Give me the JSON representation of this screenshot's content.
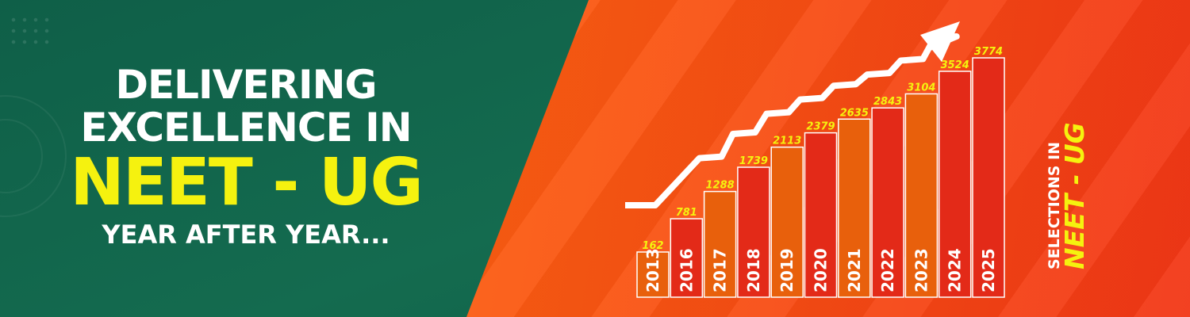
{
  "headline": {
    "line1": "DELIVERING",
    "line2": "EXCELLENCE IN",
    "line3": "NEET - UG",
    "line4": "YEAR AFTER YEAR..."
  },
  "side_label": {
    "small": "SELECTIONS IN",
    "big": "NEET - UG"
  },
  "colors": {
    "green": "#146b4f",
    "orange": "#f8730e",
    "red": "#f23716",
    "yellow": "#f5f20f",
    "bar_orange": "#e8600c",
    "bar_red": "#e32a18"
  },
  "chart_data": {
    "type": "bar",
    "title": "",
    "xlabel": "",
    "ylabel": "",
    "categories": [
      "2013",
      "2016",
      "2017",
      "2018",
      "2019",
      "2020",
      "2021",
      "2022",
      "2023",
      "2024",
      "2025"
    ],
    "values": [
      162,
      781,
      1288,
      1739,
      2113,
      2379,
      2635,
      2843,
      3104,
      3524,
      3774
    ],
    "bar_colors": [
      "#e8600c",
      "#e32a18",
      "#e8600c",
      "#e32a18",
      "#e8600c",
      "#e32a18",
      "#e8600c",
      "#e32a18",
      "#e8600c",
      "#e32a18",
      "#e32a18"
    ],
    "trend_arrow": "up",
    "grid": false,
    "legend": "none"
  }
}
